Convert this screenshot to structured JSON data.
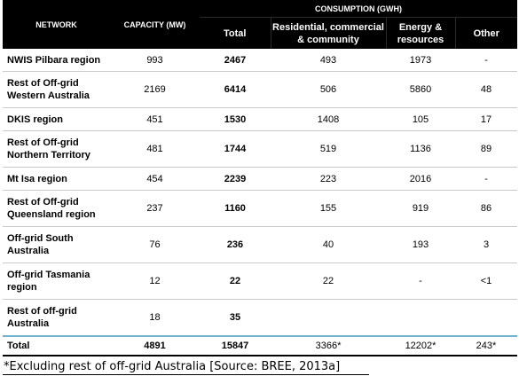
{
  "header": {
    "network": "NETWORK",
    "capacity": "CAPACITY (MW)",
    "consumption": "CONSUMPTION (GWH)",
    "total": "Total",
    "residential": "Residential, commercial & community",
    "energy": "Energy & resources",
    "other": "Other"
  },
  "rows": [
    {
      "network": "NWIS Pilbara region",
      "capacity": "993",
      "total": "2467",
      "residential": "493",
      "energy": "1973",
      "other": "-"
    },
    {
      "network": "Rest of Off-grid Western Australia",
      "capacity": "2169",
      "total": "6414",
      "residential": "506",
      "energy": "5860",
      "other": "48"
    },
    {
      "network": "DKIS region",
      "capacity": "451",
      "total": "1530",
      "residential": "1408",
      "energy": "105",
      "other": "17"
    },
    {
      "network": "Rest of Off-grid Northern Territory",
      "capacity": "481",
      "total": "1744",
      "residential": "519",
      "energy": "1136",
      "other": "89"
    },
    {
      "network": "Mt Isa region",
      "capacity": "454",
      "total": "2239",
      "residential": "223",
      "energy": "2016",
      "other": "-"
    },
    {
      "network": "Rest of Off-grid Queensland region",
      "capacity": "237",
      "total": "1160",
      "residential": "155",
      "energy": "919",
      "other": "86"
    },
    {
      "network": "Off-grid South Australia",
      "capacity": "76",
      "total": "236",
      "residential": "40",
      "energy": "193",
      "other": "3"
    },
    {
      "network": "Off-grid Tasmania region",
      "capacity": "12",
      "total": "22",
      "residential": "22",
      "energy": "-",
      "other": "<1"
    },
    {
      "network": "Rest of off-grid Australia",
      "capacity": "18",
      "total": "35",
      "residential": "",
      "energy": "",
      "other": ""
    }
  ],
  "totals": {
    "network": "Total",
    "capacity": "4891",
    "total": "15847",
    "residential": "3366*",
    "energy": "12202*",
    "other": "243*"
  },
  "footnote": "*Excluding rest of off-grid Australia [Source: BREE, 2013a]"
}
